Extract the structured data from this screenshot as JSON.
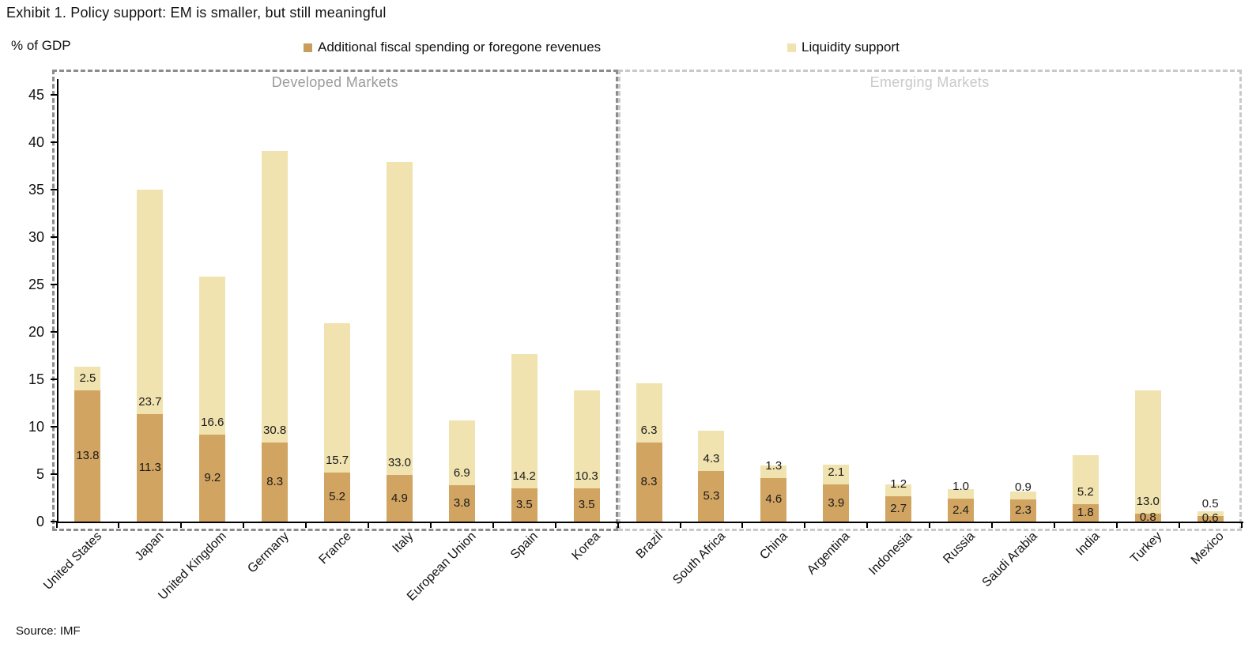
{
  "title": "Exhibit 1. Policy support: EM is smaller, but still meaningful",
  "axis_unit_label": "% of GDP",
  "source_note": "Source: IMF",
  "legend": [
    {
      "label": "Additional fiscal spending or foregone revenues",
      "color": "#C99D5B",
      "swatch_icon": "square"
    },
    {
      "label": "Liquidity support",
      "color": "#F1E3AF",
      "swatch_icon": "square"
    }
  ],
  "groups": [
    {
      "label": "Developed Markets",
      "count": 9,
      "border_color": "#8C8C8C",
      "label_color": "#9B9B9B"
    },
    {
      "label": "Emerging Markets",
      "count": 10,
      "border_color": "#C9C9C9",
      "label_color": "#C9C9C9"
    }
  ],
  "chart_data": {
    "type": "bar",
    "stacked": true,
    "title": "Exhibit 1. Policy support: EM is smaller, but still meaningful",
    "xlabel": "",
    "ylabel": "% of GDP",
    "ylim": [
      0,
      45
    ],
    "yticks": [
      0,
      5,
      10,
      15,
      20,
      25,
      30,
      35,
      40,
      45
    ],
    "grid": false,
    "legend_position": "top",
    "value_label_decimals": 1,
    "categories": [
      "United States",
      "Japan",
      "United Kingdom",
      "Germany",
      "France",
      "Italy",
      "European Union",
      "Spain",
      "Korea",
      "Brazil",
      "South Africa",
      "China",
      "Argentina",
      "Indonesia",
      "Russia",
      "Saudi Arabia",
      "India",
      "Turkey",
      "Mexico"
    ],
    "series": [
      {
        "name": "Additional fiscal spending or foregone revenues",
        "color": "#D1A461",
        "values": [
          13.8,
          11.3,
          9.2,
          8.3,
          5.2,
          4.9,
          3.8,
          3.5,
          3.5,
          8.3,
          5.3,
          4.6,
          3.9,
          2.7,
          2.4,
          2.3,
          1.8,
          0.8,
          0.6
        ]
      },
      {
        "name": "Liquidity support",
        "color": "#F1E3AF",
        "values": [
          2.5,
          23.7,
          16.6,
          30.8,
          15.7,
          33.0,
          6.9,
          14.2,
          10.3,
          6.3,
          4.3,
          1.3,
          2.1,
          1.2,
          1.0,
          0.9,
          5.2,
          13.0,
          0.5
        ]
      }
    ]
  }
}
